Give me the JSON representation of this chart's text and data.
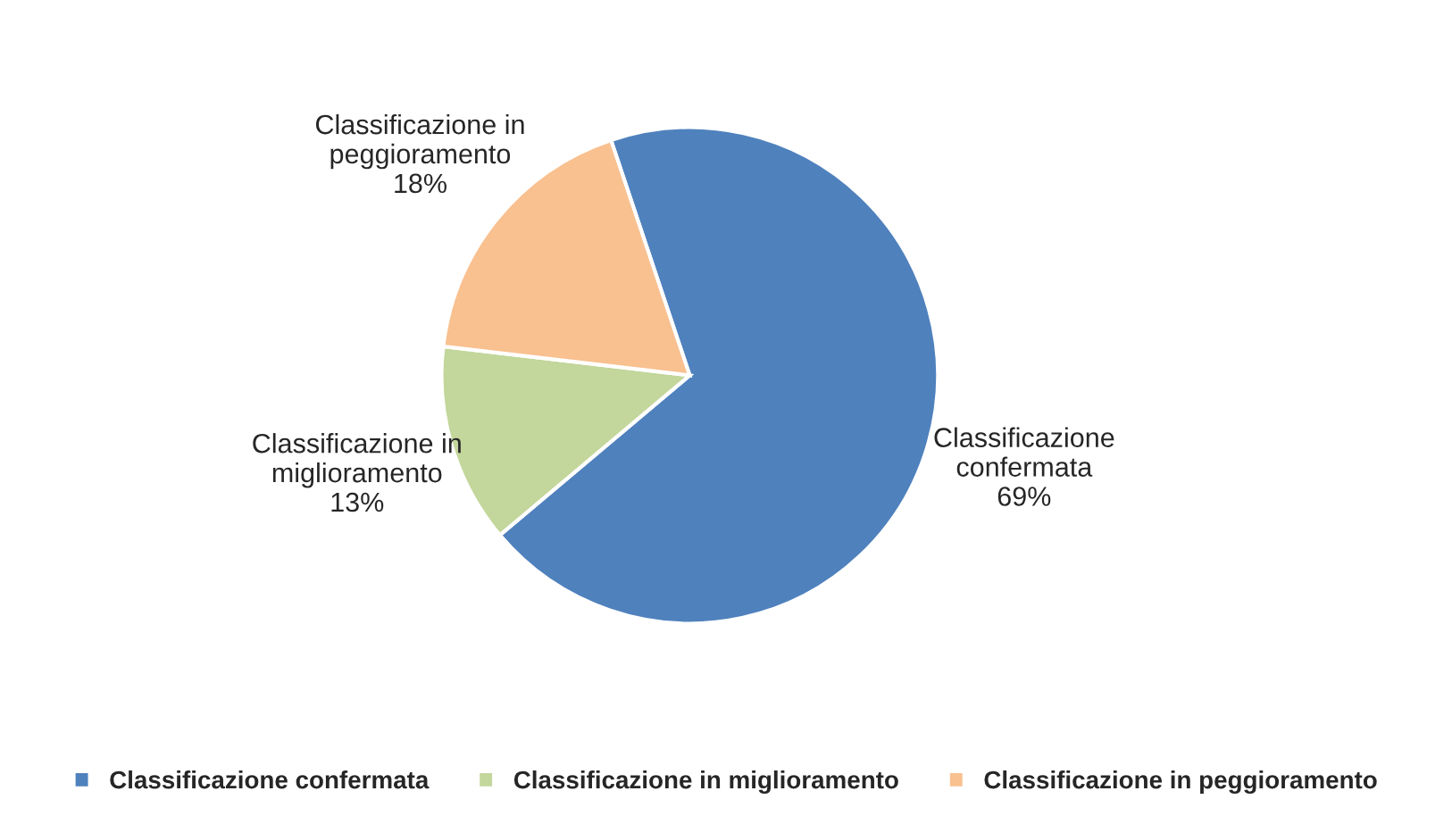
{
  "chart_data": {
    "type": "pie",
    "categories": [
      "Classificazione confermata",
      "Classificazione in miglioramento",
      "Classificazione in peggioramento"
    ],
    "values": [
      69,
      13,
      18
    ],
    "colors": [
      "#4f81bd",
      "#c3d69b",
      "#f9c090"
    ],
    "value_labels": [
      "Classificazione\nconfermata\n69%",
      "Classificazione in\nmiglioramento\n13%",
      "Classificazione in\npeggioramento\n18%"
    ],
    "legend": "bottom"
  }
}
